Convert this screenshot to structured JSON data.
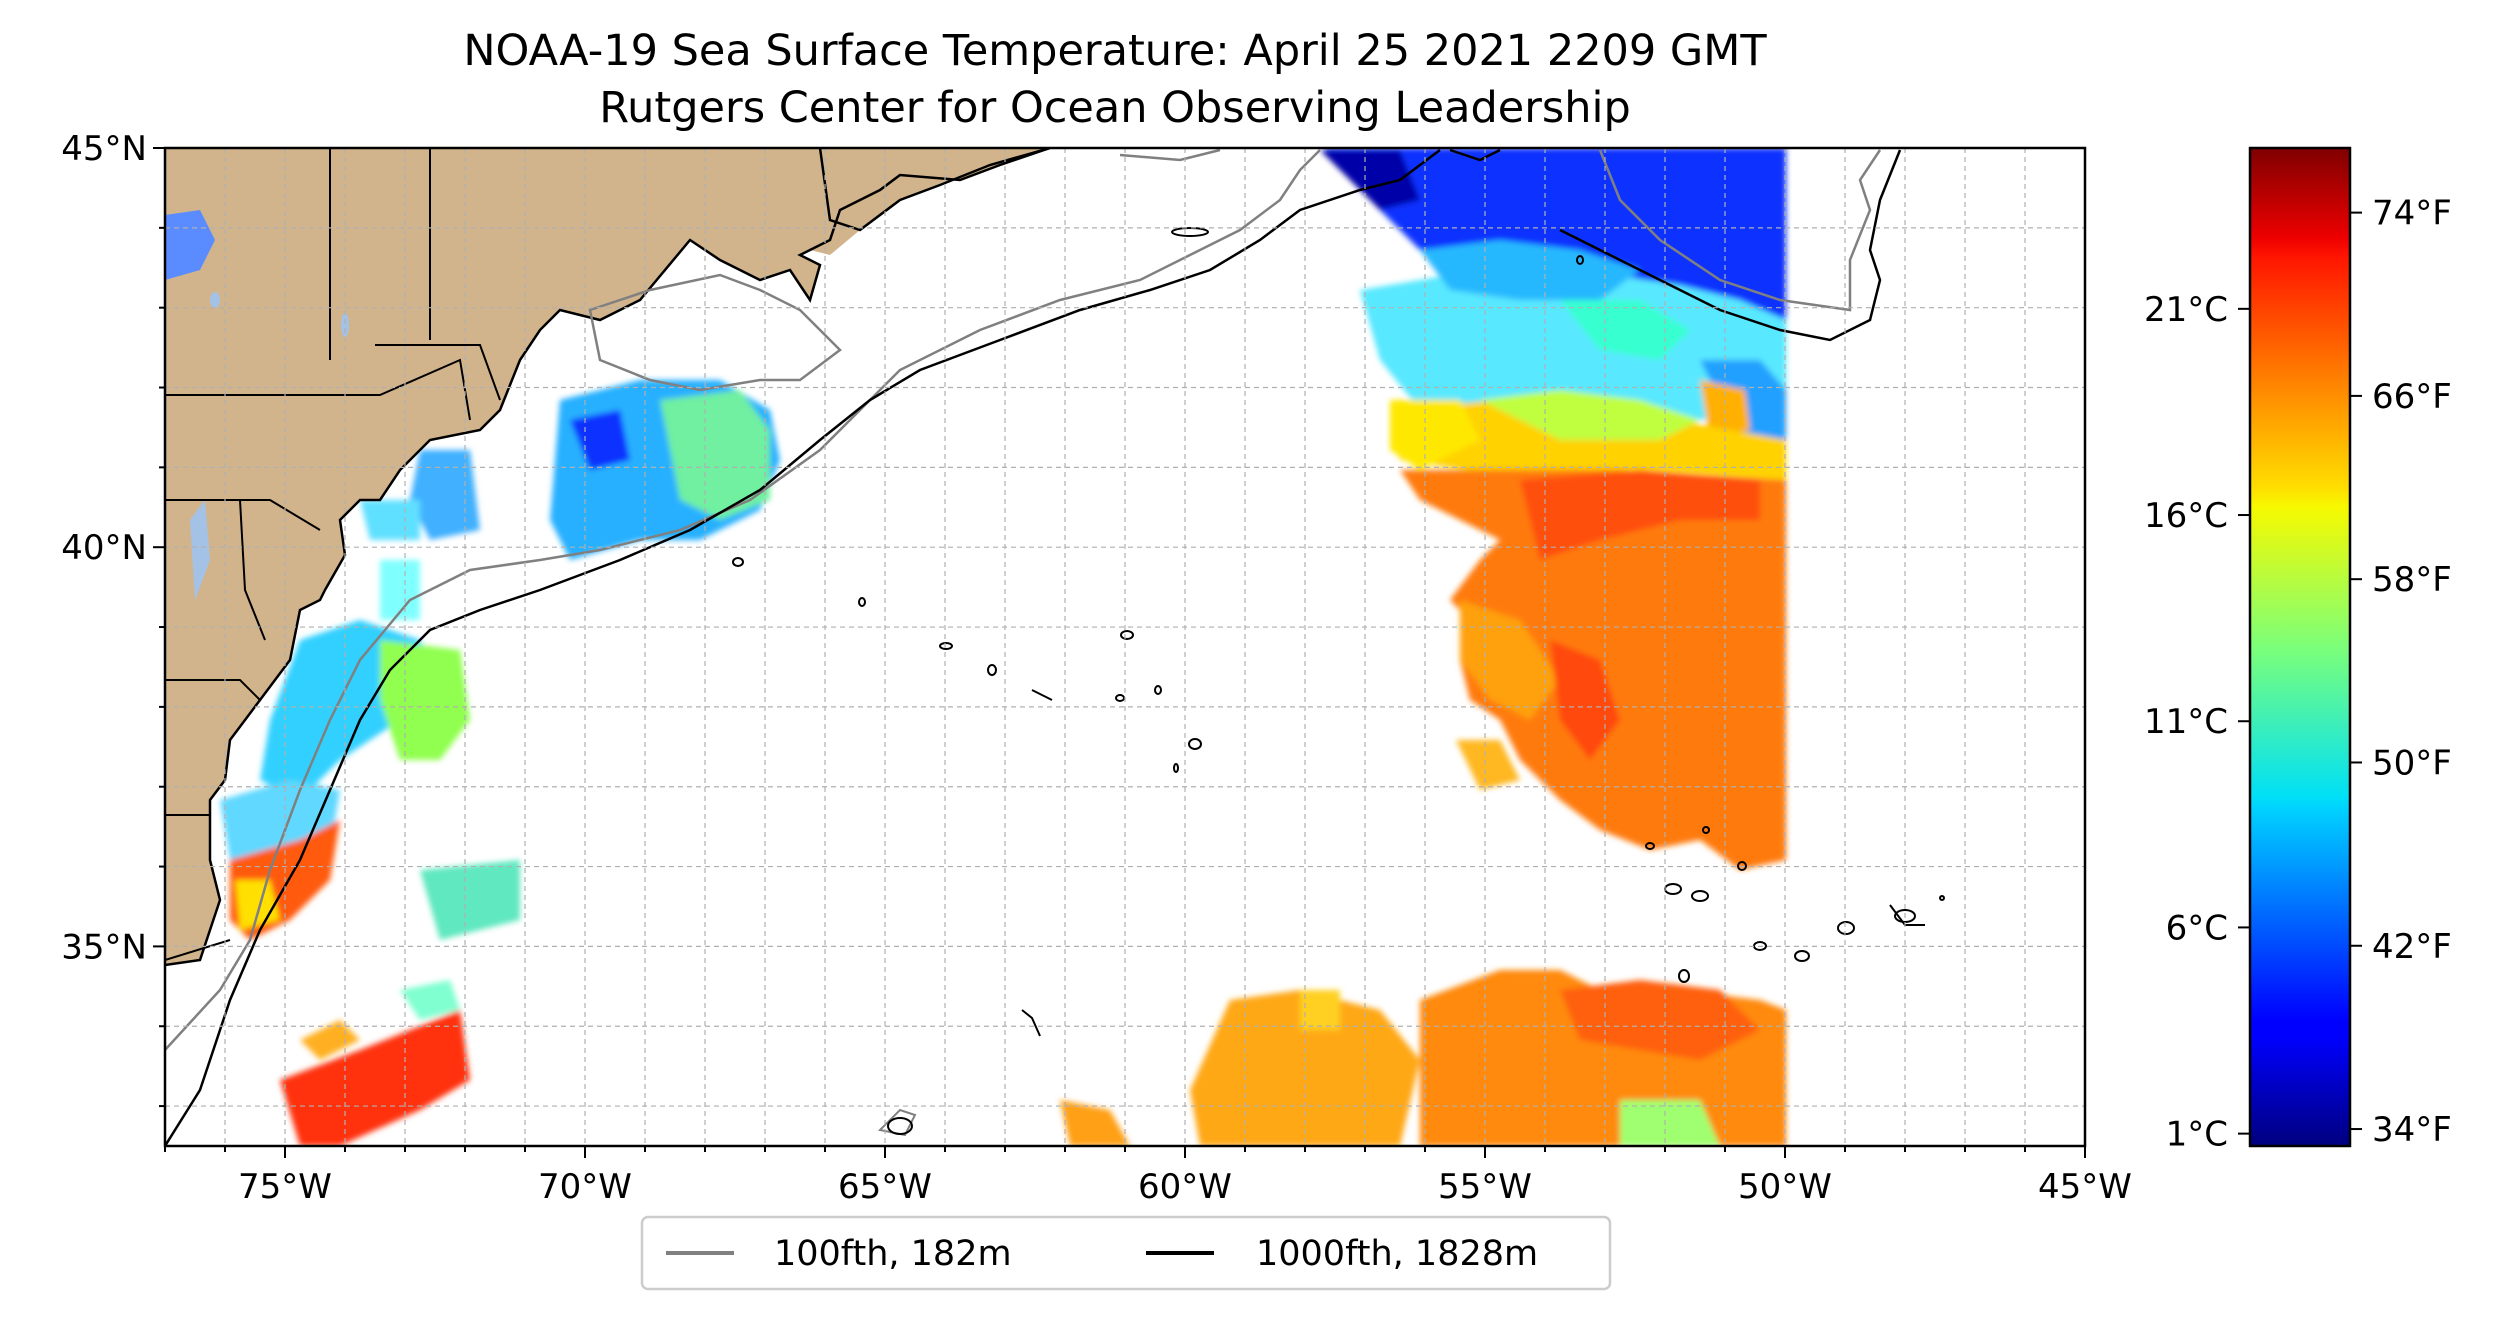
{
  "title": {
    "line1": "NOAA-19 Sea Surface Temperature: April 25 2021 2209 GMT",
    "line2": "Rutgers Center for Ocean Observing Leadership"
  },
  "map": {
    "extent": {
      "lon": [
        -77,
        -45
      ],
      "lat": [
        32.5,
        45
      ]
    },
    "land_color": "#d2b48c",
    "lake_color": "#a4c2e6",
    "x_ticks": [
      {
        "lon": -75,
        "label": "75°W"
      },
      {
        "lon": -70,
        "label": "70°W"
      },
      {
        "lon": -65,
        "label": "65°W"
      },
      {
        "lon": -60,
        "label": "60°W"
      },
      {
        "lon": -55,
        "label": "55°W"
      },
      {
        "lon": -50,
        "label": "50°W"
      },
      {
        "lon": -45,
        "label": "45°W"
      }
    ],
    "y_ticks": [
      {
        "lat": 45,
        "label": "45°N"
      },
      {
        "lat": 40,
        "label": "40°N"
      },
      {
        "lat": 35,
        "label": "35°N"
      }
    ]
  },
  "colorbar": {
    "colormap": "jet",
    "range_c": [
      0.7,
      24.9
    ],
    "celsius_ticks": [
      {
        "value": 1,
        "label": "1°C"
      },
      {
        "value": 6,
        "label": "6°C"
      },
      {
        "value": 11,
        "label": "11°C"
      },
      {
        "value": 16,
        "label": "16°C"
      },
      {
        "value": 21,
        "label": "21°C"
      }
    ],
    "fahrenheit_ticks": [
      {
        "value": 34,
        "label": "34°F"
      },
      {
        "value": 42,
        "label": "42°F"
      },
      {
        "value": 50,
        "label": "50°F"
      },
      {
        "value": 58,
        "label": "58°F"
      },
      {
        "value": 66,
        "label": "66°F"
      },
      {
        "value": 74,
        "label": "74°F"
      }
    ]
  },
  "legend": {
    "items": [
      {
        "label": "100fth, 182m",
        "color": "#808080"
      },
      {
        "label": "1000fth, 1828m",
        "color": "#000000"
      }
    ]
  }
}
